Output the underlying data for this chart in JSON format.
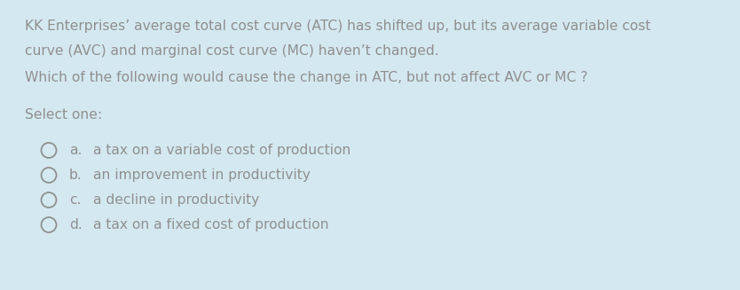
{
  "background_color": "#d4e8f0",
  "text_color": "#909090",
  "paragraph1_line1": "KK Enterprises’ average total cost curve (ATC) has shifted up, but its average variable cost",
  "paragraph1_line2": "curve (AVC) and marginal cost curve (MC) haven’t changed.",
  "paragraph2": "Which of the following would cause the change in ATC, but not affect AVC or MC ?",
  "select_label": "Select one:",
  "options": [
    {
      "letter": "a.",
      "text": "a tax on a variable cost of production"
    },
    {
      "letter": "b.",
      "text": "an improvement in productivity"
    },
    {
      "letter": "c.",
      "text": "a decline in productivity"
    },
    {
      "letter": "d.",
      "text": "a tax on a fixed cost of production"
    }
  ],
  "font_size": 11.2,
  "fig_width": 8.34,
  "fig_height": 3.27,
  "dpi": 100
}
